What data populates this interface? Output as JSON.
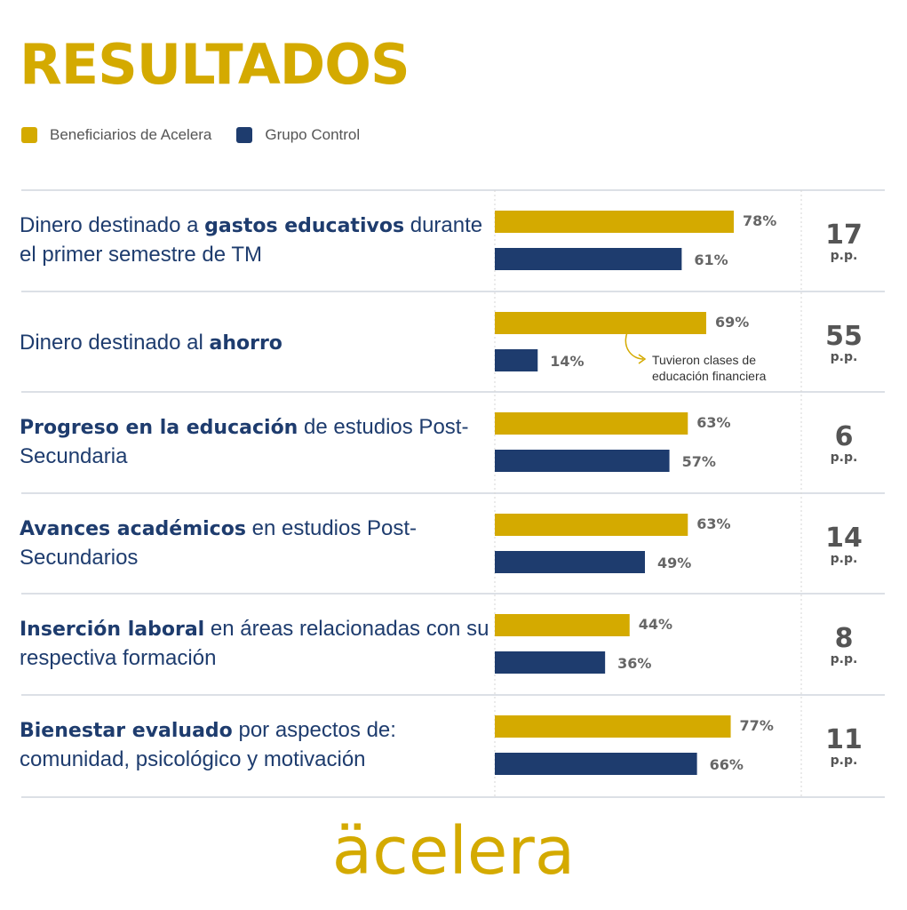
{
  "title": "RESULTADOS",
  "legend": [
    {
      "label": "Beneficiarios de Acelera",
      "color": "#d4aa00"
    },
    {
      "label": "Grupo Control",
      "color": "#1e3c6e"
    }
  ],
  "chart_data": {
    "type": "bar",
    "orientation": "horizontal",
    "series": [
      {
        "name": "Beneficiarios de Acelera",
        "color": "#d4aa00",
        "values": [
          78,
          69,
          63,
          63,
          44,
          77
        ]
      },
      {
        "name": "Grupo Control",
        "color": "#1e3c6e",
        "values": [
          61,
          14,
          57,
          49,
          36,
          66
        ]
      }
    ],
    "categories": [
      {
        "bold": "",
        "pre": "Dinero destinado a ",
        "b": "gastos educativos",
        "post": " durante el primer semestre de TM"
      },
      {
        "pre": "Dinero destinado al ",
        "b": "ahorro",
        "post": ""
      },
      {
        "pre": "",
        "b": "Progreso en la educación",
        "post": " de estudios Post-Secundaria"
      },
      {
        "pre": "",
        "b": "Avances académicos",
        "post": " en estudios Post-Secundarios"
      },
      {
        "pre": "",
        "b": "Inserción laboral",
        "post": " en áreas relacionadas con su respectiva formación"
      },
      {
        "pre": "",
        "b": "Bienestar evaluado",
        "post": " por aspectos de: comunidad, psicológico y motivación"
      }
    ],
    "value_suffix": "%",
    "difference": [
      "17",
      "55",
      "6",
      "14",
      "8",
      "11"
    ],
    "difference_unit": "p.p.",
    "annotation": "Tuvieron clases de educación financiera",
    "xlim": [
      0,
      100
    ]
  },
  "logo": "äcelera"
}
